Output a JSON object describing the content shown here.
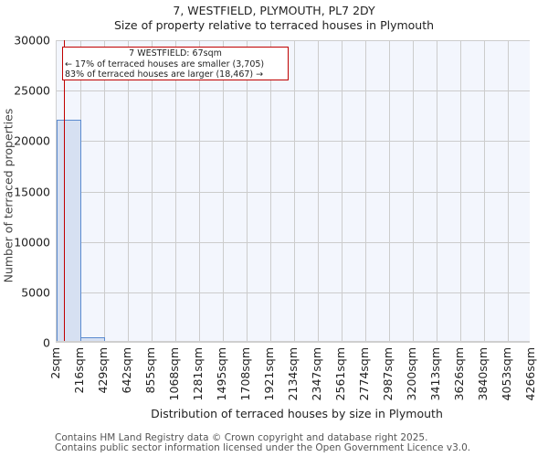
{
  "header": {
    "title": "7, WESTFIELD, PLYMOUTH, PL7 2DY",
    "subtitle": "Size of property relative to terraced houses in Plymouth"
  },
  "annotation": {
    "line1": "7 WESTFIELD: 67sqm",
    "line2": "← 17% of terraced houses are smaller (3,705)",
    "line3": "83% of terraced houses are larger (18,467) →",
    "color": "#c00000"
  },
  "axes": {
    "ylabel": "Number of terraced properties",
    "xlabel": "Distribution of terraced houses by size in Plymouth",
    "yticks": [
      "0",
      "5000",
      "10000",
      "15000",
      "20000",
      "25000",
      "30000"
    ],
    "xticks": [
      "2sqm",
      "216sqm",
      "429sqm",
      "642sqm",
      "855sqm",
      "1068sqm",
      "1281sqm",
      "1495sqm",
      "1708sqm",
      "1921sqm",
      "2134sqm",
      "2347sqm",
      "2561sqm",
      "2774sqm",
      "2987sqm",
      "3200sqm",
      "3413sqm",
      "3626sqm",
      "3840sqm",
      "4053sqm",
      "4266sqm"
    ]
  },
  "footer": {
    "line1": "Contains HM Land Registry data © Crown copyright and database right 2025.",
    "line2": "Contains public sector information licensed under the Open Government Licence v3.0."
  },
  "colors": {
    "bar_fill": "#d6e0f2",
    "bar_edge": "#5b8bd0",
    "plot_bg": "#f3f6fd",
    "marker": "#c00000"
  },
  "chart_data": {
    "type": "bar",
    "title": "7, WESTFIELD, PLYMOUTH, PL7 2DY",
    "subtitle": "Size of property relative to terraced houses in Plymouth",
    "xlabel": "Distribution of terraced houses by size in Plymouth",
    "ylabel": "Number of terraced properties",
    "categories": [
      "2sqm",
      "216sqm",
      "429sqm",
      "642sqm",
      "855sqm",
      "1068sqm",
      "1281sqm",
      "1495sqm",
      "1708sqm",
      "1921sqm",
      "2134sqm",
      "2347sqm",
      "2561sqm",
      "2774sqm",
      "2987sqm",
      "3200sqm",
      "3413sqm",
      "3626sqm",
      "3840sqm",
      "4053sqm"
    ],
    "values": [
      21900,
      370,
      0,
      0,
      0,
      0,
      0,
      0,
      0,
      0,
      0,
      0,
      0,
      0,
      0,
      0,
      0,
      0,
      0,
      0
    ],
    "ylim": [
      0,
      30000
    ],
    "grid": true,
    "marker": {
      "x": "67sqm",
      "label": "7 WESTFIELD: 67sqm"
    },
    "annotations": [
      "7 WESTFIELD: 67sqm",
      "← 17% of terraced houses are smaller (3,705)",
      "83% of terraced houses are larger (18,467) →"
    ]
  }
}
